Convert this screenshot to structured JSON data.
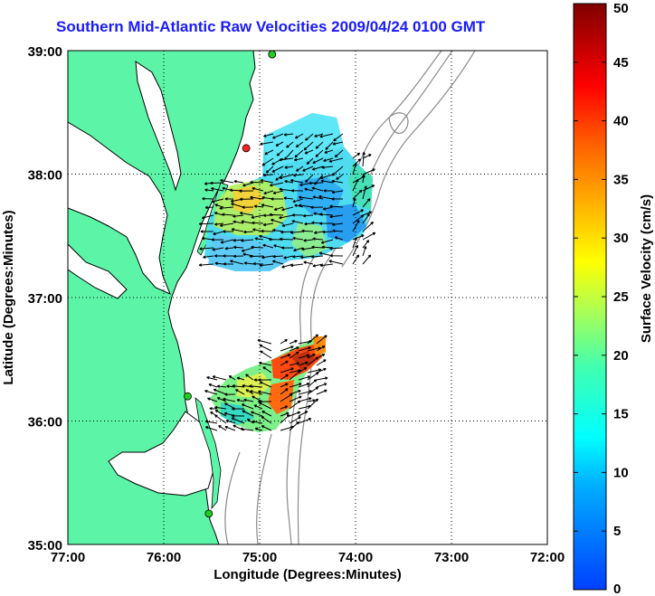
{
  "title": "Southern Mid-Atlantic Raw Velocities 2009/04/24 0100 GMT",
  "xlabel": "Longitude (Degrees:Minutes)",
  "ylabel": "Latitude (Degrees:Minutes)",
  "colorbar_label": "Surface Velocity (cm/s)",
  "x_ticks": [
    "77:00",
    "76:00",
    "75:00",
    "74:00",
    "73:00",
    "72:00"
  ],
  "y_ticks": [
    "39:00",
    "38:00",
    "37:00",
    "36:00",
    "35:00"
  ],
  "colorbar_ticks": [
    "50",
    "45",
    "40",
    "35",
    "30",
    "25",
    "20",
    "15",
    "10",
    "5",
    "0"
  ],
  "colors": {
    "land": "#5cf5a8",
    "coast": "#000000",
    "bathymetry": "#8a8a8a",
    "grid": "#000000",
    "title": "#1a1aff"
  },
  "chart_data": {
    "type": "heatmap",
    "title": "Southern Mid-Atlantic Raw Velocities 2009/04/24 0100 GMT",
    "xlabel": "Longitude (Degrees:Minutes)",
    "ylabel": "Latitude (Degrees:Minutes)",
    "xlim": [
      -77,
      -72
    ],
    "ylim": [
      35,
      39
    ],
    "color_range": [
      0,
      50
    ],
    "color_units": "cm/s",
    "grid": true,
    "sites": [
      {
        "lon": -74.87,
        "lat": 38.97,
        "color": "#22cc22"
      },
      {
        "lon": -75.14,
        "lat": 38.21,
        "color": "#ff2222"
      },
      {
        "lon": -75.75,
        "lat": 36.2,
        "color": "#22cc22"
      },
      {
        "lon": -75.53,
        "lat": 35.25,
        "color": "#22cc22"
      }
    ],
    "velocity_cells": [
      {
        "lon": -74.9,
        "lat": 38.2,
        "speed": 12
      },
      {
        "lon": -74.5,
        "lat": 38.3,
        "speed": 8
      },
      {
        "lon": -74.3,
        "lat": 38.0,
        "speed": 11
      },
      {
        "lon": -75.3,
        "lat": 37.8,
        "speed": 24
      },
      {
        "lon": -75.0,
        "lat": 37.7,
        "speed": 18
      },
      {
        "lon": -74.6,
        "lat": 37.7,
        "speed": 16
      },
      {
        "lon": -74.2,
        "lat": 37.6,
        "speed": 6
      },
      {
        "lon": -75.4,
        "lat": 37.4,
        "speed": 15
      },
      {
        "lon": -75.0,
        "lat": 37.4,
        "speed": 12
      },
      {
        "lon": -74.6,
        "lat": 37.35,
        "speed": 10
      },
      {
        "lon": -75.0,
        "lat": 36.2,
        "speed": 16
      },
      {
        "lon": -74.7,
        "lat": 36.3,
        "speed": 22
      },
      {
        "lon": -74.5,
        "lat": 36.5,
        "speed": 40
      },
      {
        "lon": -74.75,
        "lat": 36.1,
        "speed": 36
      },
      {
        "lon": -74.3,
        "lat": 36.6,
        "speed": 38
      }
    ]
  }
}
